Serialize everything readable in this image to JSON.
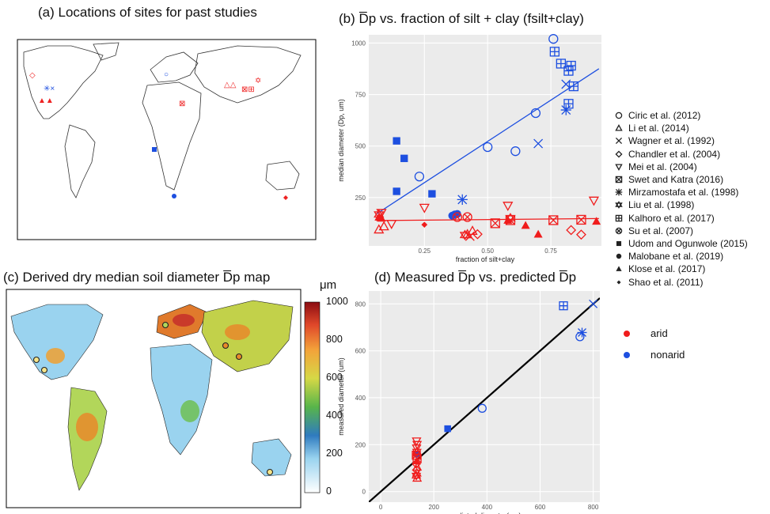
{
  "panels": {
    "a": {
      "title": "(a) Locations of sites for past studies"
    },
    "b": {
      "title": "(b) D̅p vs. fraction of silt + clay (fsilt+clay)"
    },
    "c": {
      "title": "(c) Derived dry median soil diameter D̅p map"
    },
    "d": {
      "title": "(d) Measured D̅p vs. predicted D̅p"
    }
  },
  "legend_studies": [
    {
      "label": "Ciric et al. (2012)",
      "symbol": "circle-open"
    },
    {
      "label": "Li et al. (2014)",
      "symbol": "triangle-open"
    },
    {
      "label": "Wagner et al. (1992)",
      "symbol": "cross"
    },
    {
      "label": "Chandler et al. (2004)",
      "symbol": "diamond-open"
    },
    {
      "label": "Mei et al. (2004)",
      "symbol": "triangle-down-open"
    },
    {
      "label": "Swet and Katra (2016)",
      "symbol": "square-x"
    },
    {
      "label": "Mirzamostafa et al. (1998)",
      "symbol": "asterisk"
    },
    {
      "label": "Liu et al. (1998)",
      "symbol": "star-of-david"
    },
    {
      "label": "Kalhoro et al. (2017)",
      "symbol": "square-plus"
    },
    {
      "label": "Su et al. (2007)",
      "symbol": "circle-x"
    },
    {
      "label": "Udom and Ogunwole (2015)",
      "symbol": "square-filled"
    },
    {
      "label": "Malobane et al. (2019)",
      "symbol": "circle-filled"
    },
    {
      "label": "Klose et al. (2017)",
      "symbol": "triangle-filled"
    },
    {
      "label": "Shao et al. (2011)",
      "symbol": "diamond-filled"
    }
  ],
  "legend_climate": [
    {
      "label": "arid",
      "color": "#f01c1c"
    },
    {
      "label": "nonarid",
      "color": "#1d4fe0"
    }
  ],
  "colorbar": {
    "unit": "μm",
    "ticks": [
      "1000",
      "800",
      "600",
      "400",
      "200",
      "0"
    ]
  },
  "chart_data": [
    {
      "panel": "b",
      "type": "scatter",
      "xlabel": "fraction of silt+clay",
      "ylabel": "median diameter (Dp, um)",
      "xlim": [
        0.03,
        0.95
      ],
      "ylim": [
        15,
        1040
      ],
      "xticks": [
        "0.25",
        "0.50",
        "0.75"
      ],
      "yticks": [
        "250",
        "500",
        "750",
        "1000"
      ],
      "grid": true,
      "series": [
        {
          "color": "#1d4fe0",
          "points": [
            {
              "x": 0.76,
              "y": 1020,
              "m": "circle-open"
            },
            {
              "x": 0.69,
              "y": 660,
              "m": "circle-open"
            },
            {
              "x": 0.61,
              "y": 475,
              "m": "circle-open"
            },
            {
              "x": 0.5,
              "y": 495,
              "m": "circle-open"
            },
            {
              "x": 0.23,
              "y": 352,
              "m": "circle-open"
            },
            {
              "x": 0.81,
              "y": 800,
              "m": "cross"
            },
            {
              "x": 0.7,
              "y": 512,
              "m": "cross"
            },
            {
              "x": 0.81,
              "y": 675,
              "m": "asterisk"
            },
            {
              "x": 0.4,
              "y": 240,
              "m": "asterisk"
            },
            {
              "x": 0.765,
              "y": 958,
              "m": "square-plus"
            },
            {
              "x": 0.79,
              "y": 900,
              "m": "square-plus"
            },
            {
              "x": 0.82,
              "y": 865,
              "m": "square-plus"
            },
            {
              "x": 0.83,
              "y": 890,
              "m": "square-plus"
            },
            {
              "x": 0.84,
              "y": 790,
              "m": "square-plus"
            },
            {
              "x": 0.82,
              "y": 705,
              "m": "square-plus"
            },
            {
              "x": 0.14,
              "y": 525,
              "m": "square-filled"
            },
            {
              "x": 0.17,
              "y": 440,
              "m": "square-filled"
            },
            {
              "x": 0.28,
              "y": 268,
              "m": "square-filled"
            },
            {
              "x": 0.14,
              "y": 280,
              "m": "square-filled"
            },
            {
              "x": 0.36,
              "y": 162,
              "m": "circle-filled"
            },
            {
              "x": 0.37,
              "y": 168,
              "m": "circle-filled"
            },
            {
              "x": 0.38,
              "y": 170,
              "m": "circle-filled"
            }
          ]
        },
        {
          "color": "#f01c1c",
          "points": [
            {
              "x": 0.07,
              "y": 95,
              "m": "triangle-open"
            },
            {
              "x": 0.09,
              "y": 110,
              "m": "triangle-open"
            },
            {
              "x": 0.42,
              "y": 72,
              "m": "triangle-open"
            },
            {
              "x": 0.44,
              "y": 88,
              "m": "triangle-open"
            },
            {
              "x": 0.43,
              "y": 62,
              "m": "cross"
            },
            {
              "x": 0.46,
              "y": 72,
              "m": "diamond-open"
            },
            {
              "x": 0.83,
              "y": 92,
              "m": "diamond-open"
            },
            {
              "x": 0.87,
              "y": 70,
              "m": "diamond-open"
            },
            {
              "x": 0.08,
              "y": 175,
              "m": "triangle-down-open"
            },
            {
              "x": 0.12,
              "y": 122,
              "m": "triangle-down-open"
            },
            {
              "x": 0.25,
              "y": 200,
              "m": "triangle-down-open"
            },
            {
              "x": 0.58,
              "y": 210,
              "m": "triangle-down-open"
            },
            {
              "x": 0.92,
              "y": 235,
              "m": "triangle-down-open"
            },
            {
              "x": 0.53,
              "y": 125,
              "m": "square-x"
            },
            {
              "x": 0.59,
              "y": 140,
              "m": "square-x"
            },
            {
              "x": 0.76,
              "y": 140,
              "m": "square-x"
            },
            {
              "x": 0.87,
              "y": 142,
              "m": "square-x"
            },
            {
              "x": 0.07,
              "y": 168,
              "m": "star-of-david"
            },
            {
              "x": 0.41,
              "y": 68,
              "m": "star-of-david"
            },
            {
              "x": 0.59,
              "y": 150,
              "m": "star-of-david"
            },
            {
              "x": 0.38,
              "y": 155,
              "m": "circle-x"
            },
            {
              "x": 0.42,
              "y": 155,
              "m": "circle-x"
            },
            {
              "x": 0.07,
              "y": 155,
              "m": "triangle-filled"
            },
            {
              "x": 0.08,
              "y": 150,
              "m": "triangle-filled"
            },
            {
              "x": 0.58,
              "y": 140,
              "m": "triangle-filled"
            },
            {
              "x": 0.65,
              "y": 115,
              "m": "triangle-filled"
            },
            {
              "x": 0.7,
              "y": 72,
              "m": "triangle-filled"
            },
            {
              "x": 0.93,
              "y": 135,
              "m": "triangle-filled"
            },
            {
              "x": 0.25,
              "y": 118,
              "m": "diamond-filled"
            }
          ]
        }
      ],
      "fit_lines": [
        {
          "color": "#1d4fe0",
          "x0": 0.06,
          "y0": 170,
          "x1": 0.94,
          "y1": 875
        },
        {
          "color": "#f01c1c",
          "x0": 0.06,
          "y0": 138,
          "x1": 0.94,
          "y1": 148
        }
      ]
    },
    {
      "panel": "d",
      "type": "scatter",
      "xlabel": "predicted diameter(um)",
      "ylabel": "measured diameter (um)",
      "xlim": [
        -45,
        825
      ],
      "ylim": [
        -45,
        855
      ],
      "xticks": [
        "0",
        "200",
        "400",
        "600",
        "800"
      ],
      "yticks": [
        "0",
        "200",
        "400",
        "600",
        "800"
      ],
      "grid": true,
      "series": [
        {
          "color": "#1d4fe0",
          "points": [
            {
              "x": 800,
              "y": 800,
              "m": "cross"
            },
            {
              "x": 688,
              "y": 792,
              "m": "square-plus"
            },
            {
              "x": 758,
              "y": 678,
              "m": "asterisk"
            },
            {
              "x": 750,
              "y": 660,
              "m": "circle-open"
            },
            {
              "x": 382,
              "y": 355,
              "m": "circle-open"
            },
            {
              "x": 252,
              "y": 268,
              "m": "square-filled"
            },
            {
              "x": 138,
              "y": 160,
              "m": "circle-filled"
            }
          ]
        },
        {
          "color": "#f01c1c",
          "points": [
            {
              "x": 135,
              "y": 215,
              "m": "triangle-down-open"
            },
            {
              "x": 137,
              "y": 200,
              "m": "triangle-down-open"
            },
            {
              "x": 135,
              "y": 185,
              "m": "triangle-down-open"
            },
            {
              "x": 136,
              "y": 170,
              "m": "star-of-david"
            },
            {
              "x": 134,
              "y": 155,
              "m": "square-x"
            },
            {
              "x": 137,
              "y": 140,
              "m": "square-x"
            },
            {
              "x": 135,
              "y": 130,
              "m": "triangle-filled"
            },
            {
              "x": 134,
              "y": 118,
              "m": "diamond-open"
            },
            {
              "x": 137,
              "y": 105,
              "m": "triangle-open"
            },
            {
              "x": 135,
              "y": 92,
              "m": "diamond-open"
            },
            {
              "x": 136,
              "y": 80,
              "m": "triangle-open"
            },
            {
              "x": 134,
              "y": 68,
              "m": "star-of-david"
            },
            {
              "x": 137,
              "y": 58,
              "m": "triangle-open"
            }
          ]
        }
      ],
      "fit_lines": [
        {
          "color": "#000000",
          "x0": -45,
          "y0": -45,
          "x1": 825,
          "y1": 825
        }
      ]
    }
  ]
}
